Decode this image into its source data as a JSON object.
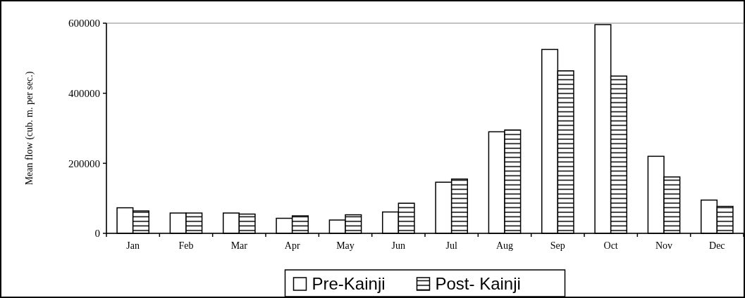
{
  "chart_data": {
    "type": "bar",
    "ylabel": "Mean flow (cub. m. per sec.)",
    "categories": [
      "Jan",
      "Feb",
      "Mar",
      "Apr",
      "May",
      "Jun",
      "Jul",
      "Aug",
      "Sep",
      "Oct",
      "Nov",
      "Dec"
    ],
    "series": [
      {
        "name": "Pre-Kainji",
        "color": "#ffffff",
        "values": [
          73000,
          58000,
          58000,
          43000,
          38000,
          61000,
          146000,
          290000,
          525000,
          596000,
          220000,
          95000
        ]
      },
      {
        "name": "Post- Kainji",
        "color": "#000000",
        "values": [
          64000,
          58000,
          55000,
          50000,
          53000,
          86000,
          155000,
          295000,
          464000,
          449000,
          161000,
          77000
        ]
      }
    ],
    "ylim": [
      0,
      600000
    ],
    "yticks": [
      0,
      200000,
      400000,
      600000
    ],
    "grid": false,
    "legend": "bottom"
  }
}
